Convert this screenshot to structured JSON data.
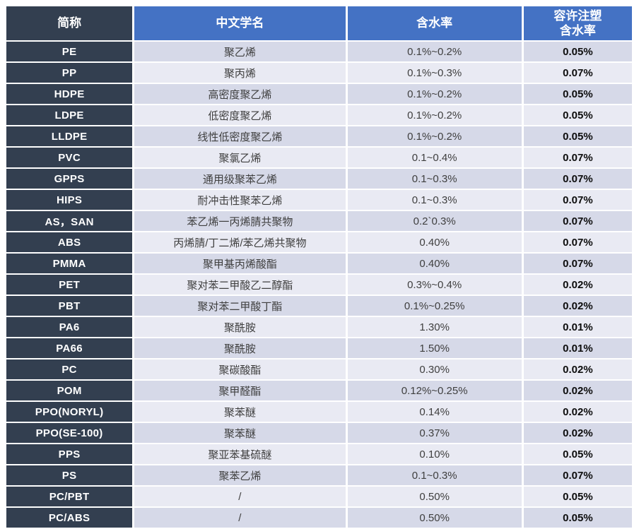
{
  "chart_data": {
    "type": "table",
    "columns": [
      "简称",
      "中文学名",
      "含水率",
      "容许注塑\n含水率"
    ],
    "rows": [
      [
        "PE",
        "聚乙烯",
        "0.1%~0.2%",
        "0.05%"
      ],
      [
        "PP",
        "聚丙烯",
        "0.1%~0.3%",
        "0.07%"
      ],
      [
        "HDPE",
        "高密度聚乙烯",
        "0.1%~0.2%",
        "0.05%"
      ],
      [
        "LDPE",
        "低密度聚乙烯",
        "0.1%~0.2%",
        "0.05%"
      ],
      [
        "LLDPE",
        "线性低密度聚乙烯",
        "0.1%~0.2%",
        "0.05%"
      ],
      [
        "PVC",
        "聚氯乙烯",
        "0.1~0.4%",
        "0.07%"
      ],
      [
        "GPPS",
        "通用级聚苯乙烯",
        "0.1~0.3%",
        "0.07%"
      ],
      [
        "HIPS",
        "耐冲击性聚苯乙烯",
        "0.1~0.3%",
        "0.07%"
      ],
      [
        "AS，SAN",
        "苯乙烯一丙烯腈共聚物",
        "0.2`0.3%",
        "0.07%"
      ],
      [
        "ABS",
        "丙烯腈/丁二烯/苯乙烯共聚物",
        "0.40%",
        "0.07%"
      ],
      [
        "PMMA",
        "聚甲基丙烯酸酯",
        "0.40%",
        "0.07%"
      ],
      [
        "PET",
        "聚对苯二甲酸乙二醇酯",
        "0.3%~0.4%",
        "0.02%"
      ],
      [
        "PBT",
        "聚对苯二甲酸丁酯",
        "0.1%~0.25%",
        "0.02%"
      ],
      [
        "PA6",
        "聚酰胺",
        "1.30%",
        "0.01%"
      ],
      [
        "PA66",
        "聚酰胺",
        "1.50%",
        "0.01%"
      ],
      [
        "PC",
        "聚碳酸酯",
        "0.30%",
        "0.02%"
      ],
      [
        "POM",
        "聚甲醛酯",
        "0.12%~0.25%",
        "0.02%"
      ],
      [
        "PPO(NORYL)",
        "聚苯醚",
        "0.14%",
        "0.02%"
      ],
      [
        "PPO(SE-100)",
        "聚苯醚",
        "0.37%",
        "0.02%"
      ],
      [
        "PPS",
        "聚亚苯基硫醚",
        "0.10%",
        "0.05%"
      ],
      [
        "PS",
        "聚苯乙烯",
        "0.1~0.3%",
        "0.07%"
      ],
      [
        "PC/PBT",
        "/",
        "0.50%",
        "0.05%"
      ],
      [
        "PC/ABS",
        "/",
        "0.50%",
        "0.05%"
      ]
    ],
    "layout": {
      "banding": "alternating rows, first data row darker",
      "abbr_column_style": "dark navy with white bold text"
    },
    "colors": {
      "abbr_column_bg": "#333F50",
      "header_bg": "#4472C4",
      "band_dark": "#D6D9E8",
      "band_light": "#E9EAF3",
      "allowed_text": "#0D0D0D",
      "body_text": "#3F3F3F"
    }
  }
}
